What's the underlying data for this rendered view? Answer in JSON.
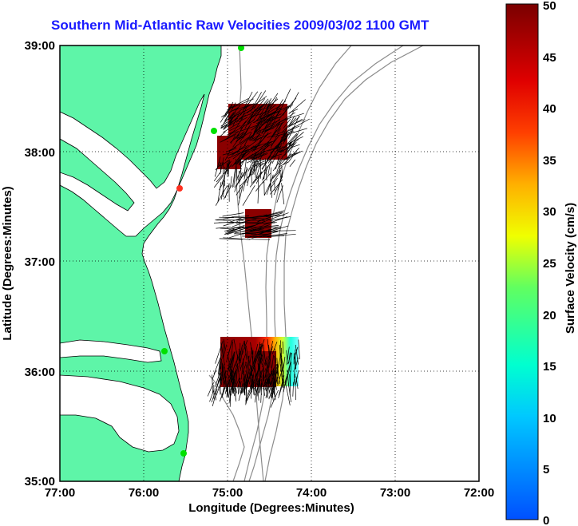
{
  "title": "Southern Mid-Atlantic Raw Velocities 2009/03/02 1100 GMT",
  "x_axis": {
    "label": "Longitude (Degrees:Minutes)",
    "ticks": [
      "77:00",
      "76:00",
      "75:00",
      "74:00",
      "73:00",
      "72:00"
    ]
  },
  "y_axis": {
    "label": "Latitude (Degrees:Minutes)",
    "ticks": [
      "39:00",
      "38:00",
      "37:00",
      "36:00",
      "35:00"
    ]
  },
  "colorbar": {
    "label": "Surface Velocity (cm/s)",
    "ticks": [
      "50",
      "45",
      "40",
      "35",
      "30",
      "25",
      "20",
      "15",
      "10",
      "5",
      "0"
    ],
    "min": 0,
    "max": 50
  },
  "colors": {
    "land": "#5ef5a8",
    "title": "#1a1aff",
    "bathymetry": "#8c8c8c",
    "vectors": "#000000",
    "high_velocity": "#8b0000"
  },
  "stations": [
    {
      "color": "#00e000"
    },
    {
      "color": "#00e000"
    },
    {
      "color": "#ff3020"
    },
    {
      "color": "#00e000"
    },
    {
      "color": "#00e000"
    }
  ]
}
